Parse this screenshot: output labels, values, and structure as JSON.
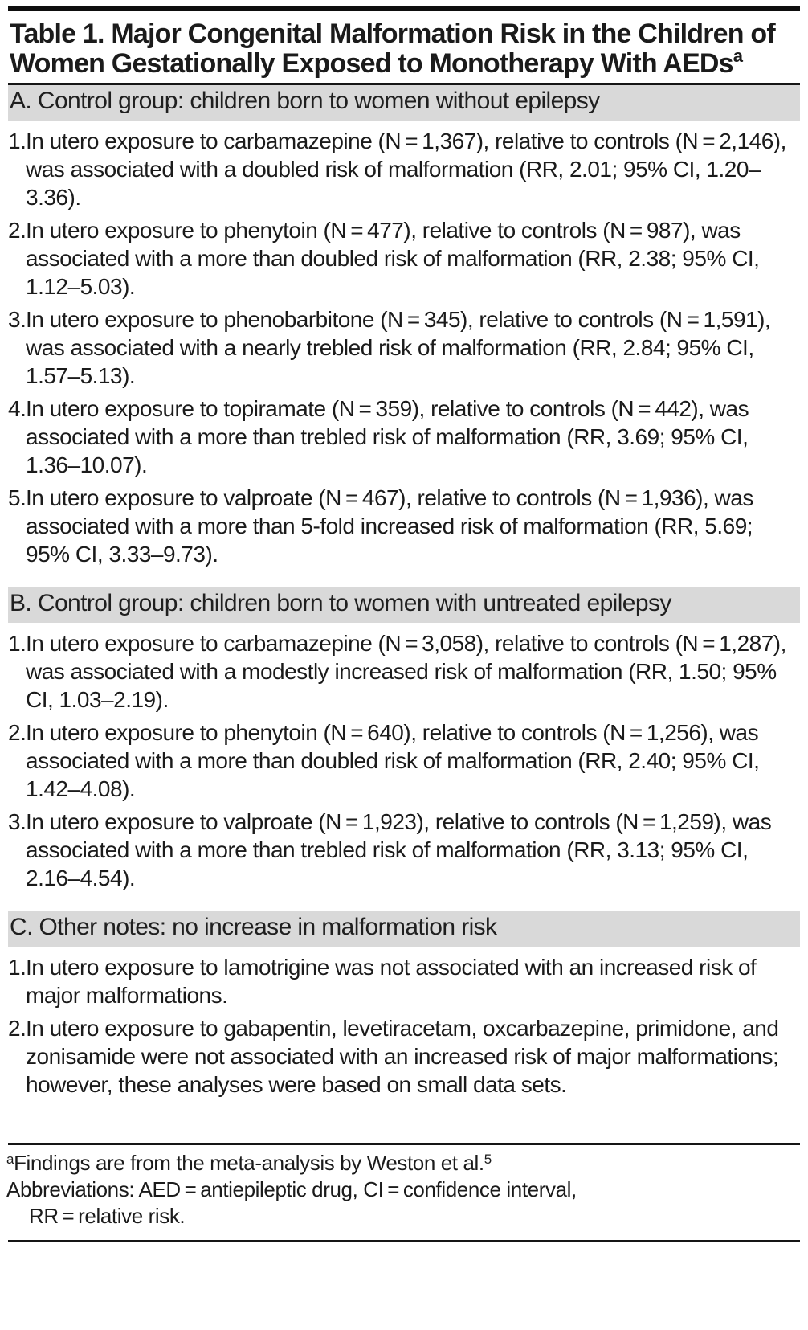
{
  "table": {
    "title": "Table 1. Major Congenital Malformation Risk in the Children of Women Gestationally Exposed to Monotherapy With AEDs",
    "title_superscript": "a",
    "sections": [
      {
        "header": "A. Control group: children born to women without epilepsy",
        "items": [
          {
            "number": "1.",
            "text": "In utero exposure to carbamazepine (N = 1,367), relative to controls (N = 2,146), was associated with a doubled risk of malformation (RR, 2.01; 95% CI, 1.20–3.36)."
          },
          {
            "number": "2.",
            "text": "In utero exposure to phenytoin (N = 477), relative to controls (N = 987), was associated with a more than doubled risk of malformation (RR, 2.38; 95% CI, 1.12–5.03)."
          },
          {
            "number": "3.",
            "text": "In utero exposure to phenobarbitone (N = 345), relative to controls (N = 1,591), was associated with a nearly trebled risk of malformation (RR, 2.84; 95% CI, 1.57–5.13)."
          },
          {
            "number": "4.",
            "text": "In utero exposure to topiramate (N = 359), relative to controls (N = 442), was associated with a more than trebled risk of malformation (RR, 3.69; 95% CI, 1.36–10.07)."
          },
          {
            "number": "5.",
            "text": "In utero exposure to valproate (N = 467), relative to controls (N = 1,936), was associated with a more than 5-fold increased risk of malformation (RR, 5.69; 95% CI, 3.33–9.73)."
          }
        ]
      },
      {
        "header": "B. Control group: children born to women with untreated epilepsy",
        "items": [
          {
            "number": "1.",
            "text": "In utero exposure to carbamazepine (N = 3,058), relative to controls (N = 1,287), was associated with a modestly increased risk of malformation (RR, 1.50; 95% CI, 1.03–2.19)."
          },
          {
            "number": "2.",
            "text": "In utero exposure to phenytoin (N = 640), relative to controls (N = 1,256), was associated with a more than doubled risk of malformation (RR, 2.40; 95% CI, 1.42–4.08)."
          },
          {
            "number": "3.",
            "text": "In utero exposure to valproate (N = 1,923), relative to controls (N = 1,259), was associated with a more than trebled risk of malformation (RR, 3.13; 95% CI, 2.16–4.54)."
          }
        ]
      },
      {
        "header": "C. Other notes: no increase in malformation risk",
        "items": [
          {
            "number": "1.",
            "text": "In utero exposure to lamotrigine was not associated with an increased risk of major malformations."
          },
          {
            "number": "2.",
            "text": "In utero exposure to gabapentin, levetiracetam, oxcarbazepine, primidone, and zonisamide were not associated with an increased risk of major malformations; however, these analyses were based on small data sets."
          }
        ]
      }
    ],
    "footnotes": {
      "marker": "a",
      "source": "Findings are from the meta-analysis by Weston et al.",
      "reference": "5",
      "abbreviations_line1": "Abbreviations: AED = antiepileptic drug, CI = confidence interval,",
      "abbreviations_line2": "RR = relative risk."
    },
    "colors": {
      "section_header_background": "#d9d9d9",
      "rule_color": "#151515",
      "text_color": "#1b1b1b"
    }
  }
}
